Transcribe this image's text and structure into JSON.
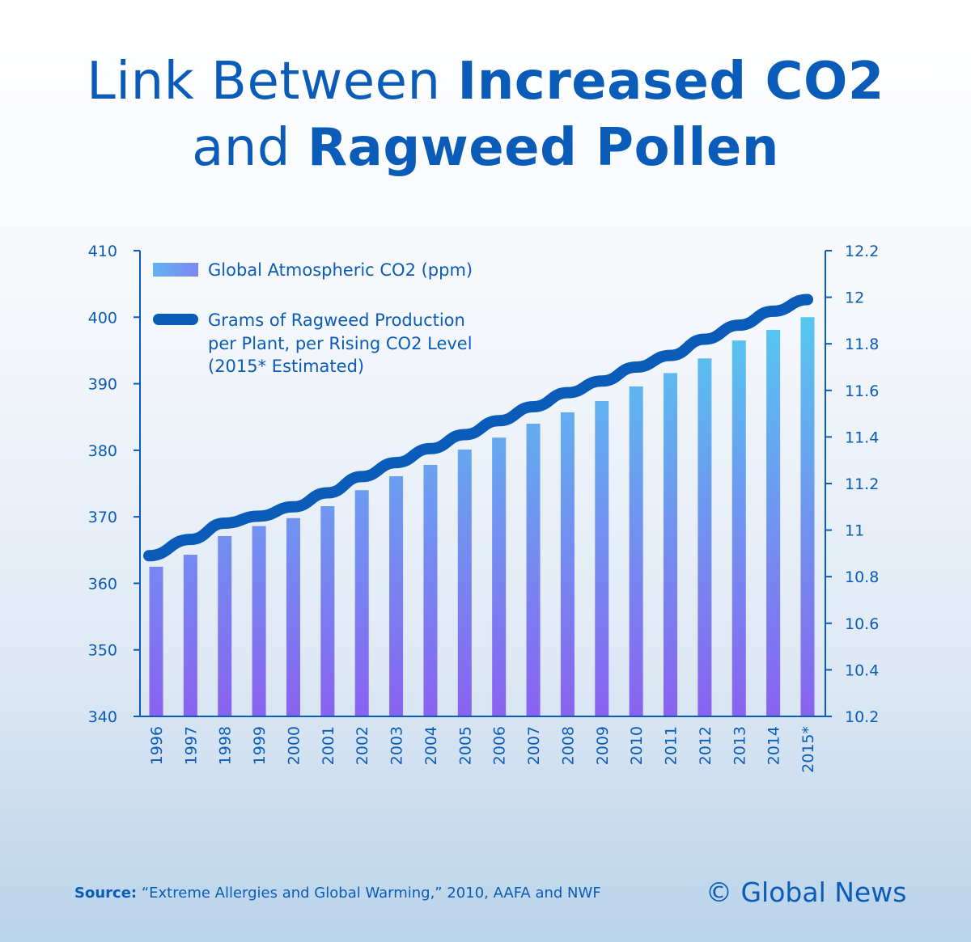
{
  "title": {
    "part1": "Link Between ",
    "part1_bold": "Increased CO2",
    "part2": "and ",
    "part2_bold": "Ragweed Pollen"
  },
  "footer": {
    "source_label": "Source:",
    "source_text": " “Extreme Allergies and Global Warming,” 2010, AAFA and NWF",
    "brand": "© Global News"
  },
  "colors": {
    "text": "#0a5cb8",
    "line": "#0a5cb8",
    "bar_top": "#55c8f0",
    "bar_bottom": "#8a62f0"
  },
  "chart_data": {
    "type": "bar+line",
    "categories": [
      "1996",
      "1997",
      "1998",
      "1999",
      "2000",
      "2001",
      "2002",
      "2003",
      "2004",
      "2005",
      "2006",
      "2007",
      "2008",
      "2009",
      "2010",
      "2011",
      "2012",
      "2013",
      "2014",
      "2015*"
    ],
    "series": [
      {
        "name": "Global Atmospheric CO2 (ppm)",
        "type": "bar",
        "axis": "left",
        "values": [
          362.5,
          364.3,
          367.1,
          368.6,
          369.8,
          371.6,
          374.0,
          376.1,
          377.8,
          380.1,
          381.9,
          384.0,
          385.7,
          387.4,
          389.6,
          391.6,
          393.8,
          396.5,
          398.1,
          400.0
        ]
      },
      {
        "name": "Grams of Ragweed Production per Plant, per Rising CO2 Level (2015* Estimated)",
        "type": "line",
        "axis": "right",
        "values": [
          10.89,
          10.96,
          11.03,
          11.06,
          11.1,
          11.16,
          11.23,
          11.29,
          11.35,
          11.41,
          11.47,
          11.53,
          11.59,
          11.64,
          11.7,
          11.75,
          11.82,
          11.88,
          11.94,
          11.99
        ]
      }
    ],
    "legend_lines": [
      "Global Atmospheric CO2 (ppm)",
      "Grams of Ragweed Production",
      "per Plant, per Rising CO2 Level",
      "(2015* Estimated)"
    ],
    "y_left": {
      "lim": [
        340,
        410
      ],
      "ticks": [
        "340",
        "350",
        "360",
        "370",
        "380",
        "390",
        "400",
        "410"
      ]
    },
    "y_right": {
      "lim": [
        10.2,
        12.2
      ],
      "ticks": [
        "10.2",
        "10.4",
        "10.6",
        "10.8",
        "11",
        "11.2",
        "11.4",
        "11.6",
        "11.8",
        "12",
        "12.2"
      ]
    },
    "grid": false,
    "legend_position": "top-left"
  }
}
